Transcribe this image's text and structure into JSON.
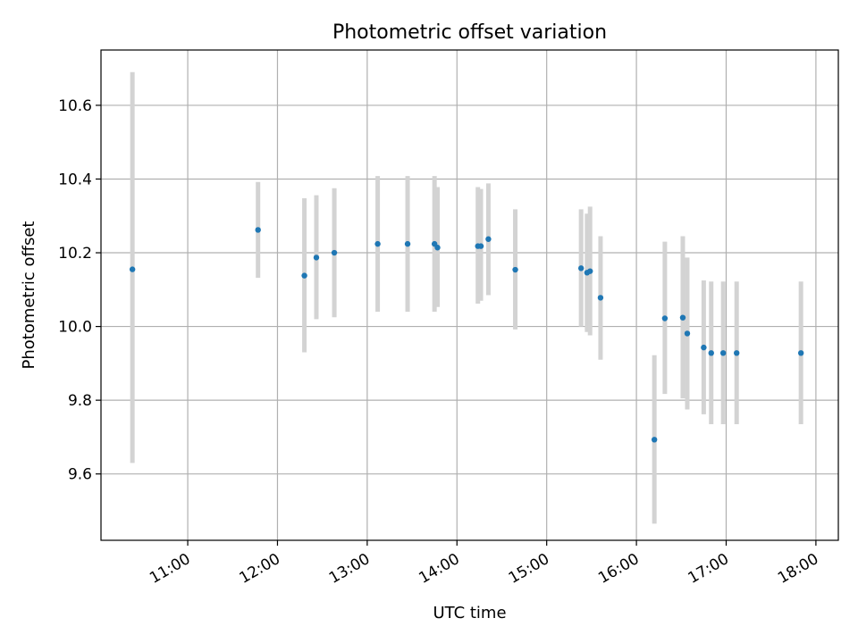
{
  "chart_data": {
    "type": "scatter",
    "title": "Photometric offset variation",
    "xlabel": "UTC time",
    "ylabel": "Photometric offset",
    "x_tick_labels": [
      "11:00",
      "12:00",
      "13:00",
      "14:00",
      "15:00",
      "16:00",
      "17:00",
      "18:00"
    ],
    "y_tick_labels": [
      "9.6",
      "9.8",
      "10.0",
      "10.2",
      "10.4",
      "10.6"
    ],
    "y_ticks": [
      9.6,
      9.8,
      10.0,
      10.2,
      10.4,
      10.6
    ],
    "xlim": [
      "10:02",
      "18:15"
    ],
    "ylim": [
      9.42,
      10.75
    ],
    "grid": true,
    "legend": "none",
    "point_color": "#1f77b4",
    "errorbar_color": "#d3d3d3",
    "points": [
      {
        "x": "10:23",
        "y": 10.155,
        "ylow": 9.63,
        "yhigh": 10.69
      },
      {
        "x": "11:47",
        "y": 10.262,
        "ylow": 10.132,
        "yhigh": 10.392
      },
      {
        "x": "12:18",
        "y": 10.138,
        "ylow": 9.93,
        "yhigh": 10.348
      },
      {
        "x": "12:26",
        "y": 10.187,
        "ylow": 10.02,
        "yhigh": 10.356
      },
      {
        "x": "12:38",
        "y": 10.2,
        "ylow": 10.025,
        "yhigh": 10.375
      },
      {
        "x": "13:07",
        "y": 10.224,
        "ylow": 10.04,
        "yhigh": 10.408
      },
      {
        "x": "13:27",
        "y": 10.224,
        "ylow": 10.04,
        "yhigh": 10.408
      },
      {
        "x": "13:45",
        "y": 10.224,
        "ylow": 10.04,
        "yhigh": 10.408
      },
      {
        "x": "13:47",
        "y": 10.214,
        "ylow": 10.053,
        "yhigh": 10.378
      },
      {
        "x": "14:14",
        "y": 10.218,
        "ylow": 10.062,
        "yhigh": 10.378
      },
      {
        "x": "14:16",
        "y": 10.218,
        "ylow": 10.07,
        "yhigh": 10.373
      },
      {
        "x": "14:21",
        "y": 10.237,
        "ylow": 10.085,
        "yhigh": 10.388
      },
      {
        "x": "14:39",
        "y": 10.154,
        "ylow": 9.992,
        "yhigh": 10.318
      },
      {
        "x": "15:23",
        "y": 10.158,
        "ylow": 10.0,
        "yhigh": 10.318
      },
      {
        "x": "15:27",
        "y": 10.146,
        "ylow": 9.985,
        "yhigh": 10.306
      },
      {
        "x": "15:29",
        "y": 10.15,
        "ylow": 9.976,
        "yhigh": 10.325
      },
      {
        "x": "15:36",
        "y": 10.078,
        "ylow": 9.91,
        "yhigh": 10.245
      },
      {
        "x": "16:12",
        "y": 9.693,
        "ylow": 9.465,
        "yhigh": 9.922
      },
      {
        "x": "16:19",
        "y": 10.022,
        "ylow": 9.817,
        "yhigh": 10.23
      },
      {
        "x": "16:31",
        "y": 10.024,
        "ylow": 9.805,
        "yhigh": 10.245
      },
      {
        "x": "16:34",
        "y": 9.981,
        "ylow": 9.775,
        "yhigh": 10.187
      },
      {
        "x": "16:45",
        "y": 9.943,
        "ylow": 9.762,
        "yhigh": 10.125
      },
      {
        "x": "16:50",
        "y": 9.928,
        "ylow": 9.735,
        "yhigh": 10.122
      },
      {
        "x": "16:58",
        "y": 9.928,
        "ylow": 9.735,
        "yhigh": 10.122
      },
      {
        "x": "17:07",
        "y": 9.928,
        "ylow": 9.735,
        "yhigh": 10.122
      },
      {
        "x": "17:50",
        "y": 9.928,
        "ylow": 9.735,
        "yhigh": 10.122
      }
    ]
  }
}
